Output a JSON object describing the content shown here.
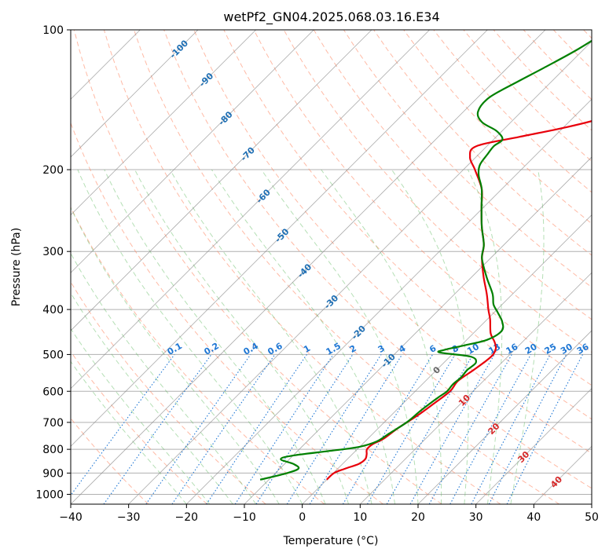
{
  "chart_data": {
    "type": "line",
    "subtype": "skew-t log-p diagram",
    "title": "wetPf2_GN04.2025.068.03.16.E34",
    "xlabel": "Temperature (°C)",
    "ylabel": "Pressure (hPa)",
    "xlim": [
      -40,
      50
    ],
    "ylim": [
      1050,
      100
    ],
    "y_scale": "log",
    "x_ticks": [
      -40,
      -30,
      -20,
      -10,
      0,
      10,
      20,
      30,
      40,
      50
    ],
    "x_tick_labels": [
      "−40",
      "−30",
      "−20",
      "−10",
      "0",
      "10",
      "20",
      "30",
      "40",
      "50"
    ],
    "y_ticks": [
      100,
      200,
      300,
      400,
      500,
      600,
      700,
      800,
      900,
      1000
    ],
    "y_tick_labels": [
      "100",
      "200",
      "300",
      "400",
      "500",
      "600",
      "700",
      "800",
      "900",
      "1000"
    ],
    "grid": true,
    "colors": {
      "temperature": "#e8000b",
      "dewpoint": "#008000",
      "isotherm": "#888888",
      "dry_adiabat": "#ff8c69",
      "moist_adiabat": "#5cb85c",
      "mixing_ratio": "#1f77d4",
      "isotherm_label": "#1f6fb4",
      "zero_label": "#666666",
      "warm_label": "#d62728"
    },
    "isotherm_labels": [
      {
        "text": "-100",
        "value": -100,
        "p": 110
      },
      {
        "text": "-90",
        "value": -90,
        "p": 128
      },
      {
        "text": "-80",
        "value": -80,
        "p": 155
      },
      {
        "text": "-70",
        "value": -70,
        "p": 185
      },
      {
        "text": "-60",
        "value": -60,
        "p": 228
      },
      {
        "text": "-50",
        "value": -50,
        "p": 277
      },
      {
        "text": "-40",
        "value": -40,
        "p": 330
      },
      {
        "text": "-30",
        "value": -30,
        "p": 385
      },
      {
        "text": "-20",
        "value": -20,
        "p": 448
      },
      {
        "text": "-10",
        "value": -10,
        "p": 515
      },
      {
        "text": "0",
        "value": 0,
        "p": 540
      },
      {
        "text": "10",
        "value": 10,
        "p": 627
      },
      {
        "text": "20",
        "value": 20,
        "p": 722
      },
      {
        "text": "30",
        "value": 30,
        "p": 830
      },
      {
        "text": "40",
        "value": 40,
        "p": 940
      }
    ],
    "mixing_ratio_values": [
      0.1,
      0.2,
      0.4,
      0.6,
      1,
      1.5,
      2,
      3,
      4,
      6,
      8,
      10,
      13,
      16,
      20,
      25,
      30,
      36
    ],
    "mixing_ratio_labels": [
      "0.1",
      "0.2",
      "0.4",
      "0.6",
      "1",
      "1.5",
      "2",
      "3",
      "4",
      "6",
      "8",
      "10",
      "13",
      "16",
      "20",
      "25",
      "30",
      "36"
    ],
    "mixing_ratio_label_p": 500,
    "series": [
      {
        "key": "temperature",
        "points": [
          [
            930,
            0.0
          ],
          [
            900,
            0.1
          ],
          [
            880,
            1.3
          ],
          [
            860,
            2.8
          ],
          [
            840,
            3.1
          ],
          [
            820,
            2.5
          ],
          [
            800,
            1.7
          ],
          [
            780,
            1.8
          ],
          [
            760,
            2.7
          ],
          [
            720,
            3.4
          ],
          [
            680,
            4.5
          ],
          [
            640,
            5.3
          ],
          [
            600,
            6.0
          ],
          [
            570,
            5.6
          ],
          [
            540,
            6.4
          ],
          [
            515,
            7.0
          ],
          [
            500,
            7.1
          ],
          [
            485,
            6.5
          ],
          [
            470,
            5.2
          ],
          [
            450,
            3.0
          ],
          [
            420,
            0.5
          ],
          [
            400,
            -1.5
          ],
          [
            370,
            -4.5
          ],
          [
            340,
            -8.0
          ],
          [
            310,
            -11.5
          ],
          [
            290,
            -13.5
          ],
          [
            265,
            -17.0
          ],
          [
            240,
            -20.5
          ],
          [
            220,
            -23.5
          ],
          [
            200,
            -28.0
          ],
          [
            188,
            -31.0
          ],
          [
            178,
            -31.8
          ],
          [
            170,
            -26.0
          ],
          [
            162,
            -19.5
          ],
          [
            155,
            -15.0
          ],
          [
            148,
            -12.5
          ],
          [
            140,
            -11.5
          ],
          [
            130,
            -10.5
          ],
          [
            120,
            -8.0
          ],
          [
            112,
            -4.5
          ],
          [
            105,
            -1.0
          ],
          [
            100,
            0.5
          ]
        ]
      },
      {
        "key": "dewpoint",
        "points": [
          [
            930,
            -11.5
          ],
          [
            900,
            -8.0
          ],
          [
            880,
            -6.8
          ],
          [
            860,
            -8.5
          ],
          [
            840,
            -11.5
          ],
          [
            825,
            -10.0
          ],
          [
            805,
            -4.0
          ],
          [
            790,
            0.0
          ],
          [
            770,
            2.0
          ],
          [
            740,
            2.8
          ],
          [
            700,
            3.9
          ],
          [
            660,
            4.3
          ],
          [
            620,
            5.0
          ],
          [
            600,
            5.5
          ],
          [
            580,
            5.3
          ],
          [
            560,
            5.5
          ],
          [
            540,
            5.3
          ],
          [
            520,
            5.5
          ],
          [
            505,
            3.5
          ],
          [
            495,
            -2.5
          ],
          [
            488,
            -2.0
          ],
          [
            478,
            0.5
          ],
          [
            465,
            3.5
          ],
          [
            445,
            4.5
          ],
          [
            425,
            3.0
          ],
          [
            405,
            0.5
          ],
          [
            390,
            -1.5
          ],
          [
            370,
            -3.5
          ],
          [
            340,
            -7.5
          ],
          [
            310,
            -11.5
          ],
          [
            290,
            -13.5
          ],
          [
            265,
            -17.0
          ],
          [
            240,
            -20.5
          ],
          [
            220,
            -23.5
          ],
          [
            205,
            -26.5
          ],
          [
            195,
            -28.0
          ],
          [
            185,
            -28.5
          ],
          [
            178,
            -28.8
          ],
          [
            172,
            -28.5
          ],
          [
            165,
            -31.0
          ],
          [
            158,
            -35.0
          ],
          [
            150,
            -37.5
          ],
          [
            140,
            -38.0
          ],
          [
            130,
            -36.0
          ],
          [
            120,
            -33.5
          ],
          [
            110,
            -31.0
          ],
          [
            100,
            -29.0
          ]
        ]
      }
    ]
  }
}
